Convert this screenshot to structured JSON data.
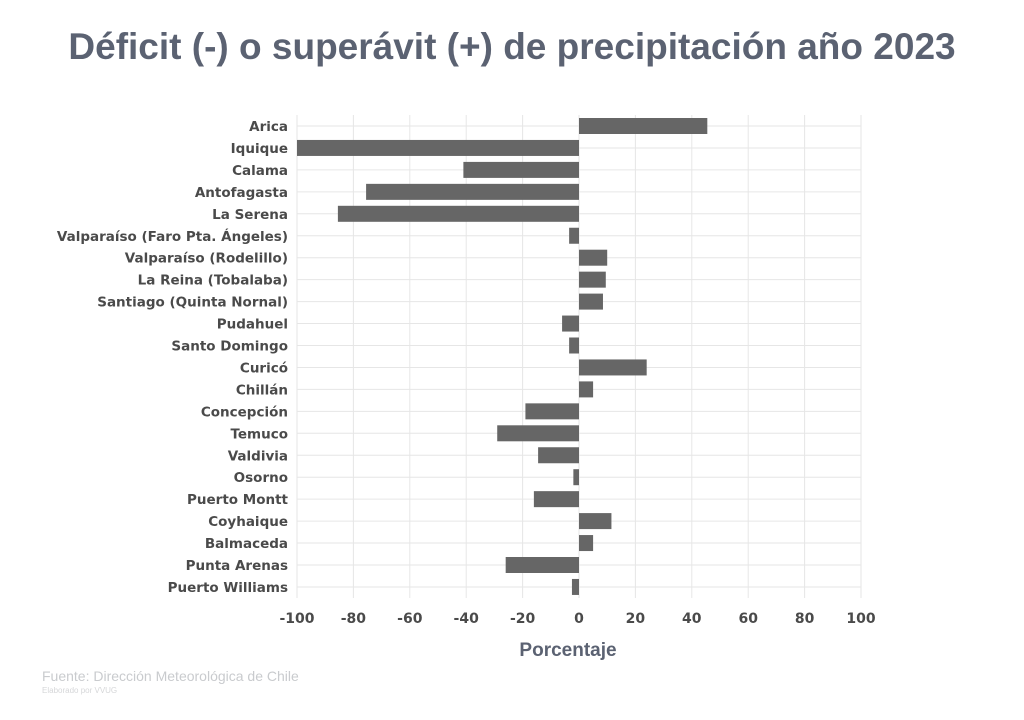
{
  "title": "Déficit (-) o superávit (+) de precipitación año 2023",
  "source": "Fuente: Dirección Meteorológica de Chile",
  "credit": "Elaborado por VVUG",
  "colors": {
    "bar": "#666666",
    "grid": "#e6e6e6",
    "title": "#5b6272"
  },
  "chart_data": {
    "type": "bar",
    "orientation": "horizontal",
    "categories": [
      "Arica",
      "Iquique",
      "Calama",
      "Antofagasta",
      "La Serena",
      "Valparaíso (Faro Pta. Ángeles)",
      "Valparaíso (Rodelillo)",
      "La Reina (Tobalaba)",
      "Santiago (Quinta Nornal)",
      "Pudahuel",
      "Santo Domingo",
      "Curicó",
      "Chillán",
      "Concepción",
      "Temuco",
      "Valdivia",
      "Osorno",
      "Puerto Montt",
      "Coyhaique",
      "Balmaceda",
      "Punta Arenas",
      "Puerto Williams"
    ],
    "values": [
      45.5,
      -100,
      -41,
      -75.5,
      -85.5,
      -3.5,
      10,
      9.5,
      8.5,
      -6,
      -3.5,
      24,
      5,
      -19,
      -29,
      -14.5,
      -2,
      -16,
      11.5,
      5,
      -26,
      -2.5
    ],
    "xlabel": "Porcentaje",
    "ylabel": "",
    "xlim": [
      -100,
      100
    ],
    "xticks": [
      -100,
      -80,
      -60,
      -40,
      -20,
      0,
      20,
      40,
      60,
      80,
      100
    ],
    "xtick_labels": [
      "-100",
      "-80",
      "-60",
      "-40",
      "-20",
      "0",
      "20",
      "40",
      "60",
      "80",
      "100"
    ],
    "grid": true
  }
}
